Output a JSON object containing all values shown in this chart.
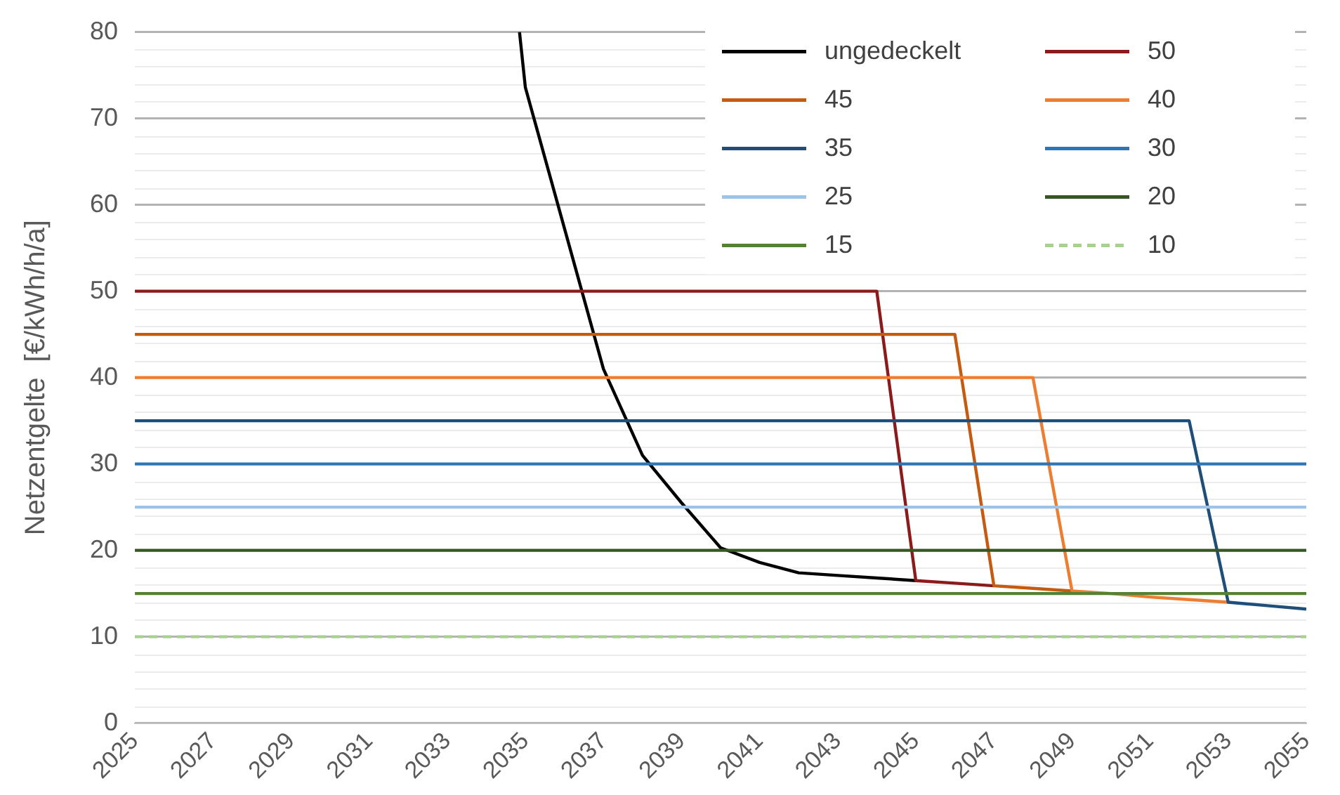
{
  "chart_data": {
    "type": "line",
    "ylabel": "Netzentgelte  [€/kWh/h/a]",
    "x": [
      2025,
      2026,
      2027,
      2028,
      2029,
      2030,
      2031,
      2032,
      2033,
      2034,
      2035,
      2036,
      2037,
      2038,
      2039,
      2040,
      2041,
      2042,
      2043,
      2044,
      2045,
      2046,
      2047,
      2048,
      2049,
      2050,
      2051,
      2052,
      2053,
      2054,
      2055
    ],
    "xlim": [
      2025,
      2055
    ],
    "xticks": [
      2025,
      2027,
      2029,
      2031,
      2033,
      2035,
      2037,
      2039,
      2041,
      2043,
      2045,
      2047,
      2049,
      2051,
      2053,
      2055
    ],
    "ylim": [
      0,
      80
    ],
    "yticks": [
      0,
      10,
      20,
      30,
      40,
      50,
      60,
      70,
      80
    ],
    "grid": "y",
    "legend": "top right",
    "marker": "none",
    "line_style": "solid",
    "series": [
      {
        "name": "ungedeckelt",
        "color": "#000000",
        "x": [
          2034.85,
          2035,
          2036,
          2037,
          2038,
          2039,
          2040,
          2041,
          2042,
          2043,
          2044,
          2045
        ],
        "values": [
          80,
          73.6,
          57.3,
          41,
          31,
          25.5,
          20.3,
          18.6,
          17.4,
          17.1,
          16.8,
          16.5
        ]
      },
      {
        "name": "50",
        "color": "#8b1a1a",
        "values": [
          50,
          50,
          50,
          50,
          50,
          50,
          50,
          50,
          50,
          50,
          50,
          50,
          50,
          50,
          50,
          50,
          50,
          50,
          50,
          50,
          16.5,
          16.2,
          15.9,
          null,
          null,
          null,
          null,
          null,
          null,
          null,
          null
        ]
      },
      {
        "name": "45",
        "color": "#c55a11",
        "values": [
          45,
          45,
          45,
          45,
          45,
          45,
          45,
          45,
          45,
          45,
          45,
          45,
          45,
          45,
          45,
          45,
          45,
          45,
          45,
          45,
          45,
          45,
          15.9,
          15.6,
          15.3,
          null,
          null,
          null,
          null,
          null,
          null
        ]
      },
      {
        "name": "40",
        "color": "#ed7d31",
        "values": [
          40,
          40,
          40,
          40,
          40,
          40,
          40,
          40,
          40,
          40,
          40,
          40,
          40,
          40,
          40,
          40,
          40,
          40,
          40,
          40,
          40,
          40,
          40,
          40,
          15.3,
          15,
          14.6,
          14.3,
          14,
          null,
          null
        ]
      },
      {
        "name": "35",
        "color": "#1f4e79",
        "values": [
          35,
          35,
          35,
          35,
          35,
          35,
          35,
          35,
          35,
          35,
          35,
          35,
          35,
          35,
          35,
          35,
          35,
          35,
          35,
          35,
          35,
          35,
          35,
          35,
          35,
          35,
          35,
          35,
          14,
          13.6,
          13.2
        ]
      },
      {
        "name": "30",
        "color": "#2e75b6",
        "values": [
          30,
          30,
          30,
          30,
          30,
          30,
          30,
          30,
          30,
          30,
          30,
          30,
          30,
          30,
          30,
          30,
          30,
          30,
          30,
          30,
          30,
          30,
          30,
          30,
          30,
          30,
          30,
          30,
          30,
          30,
          30
        ]
      },
      {
        "name": "25",
        "color": "#9dc3e6",
        "values": [
          25,
          25,
          25,
          25,
          25,
          25,
          25,
          25,
          25,
          25,
          25,
          25,
          25,
          25,
          25,
          25,
          25,
          25,
          25,
          25,
          25,
          25,
          25,
          25,
          25,
          25,
          25,
          25,
          25,
          25,
          25
        ]
      },
      {
        "name": "20",
        "color": "#375623",
        "values": [
          20,
          20,
          20,
          20,
          20,
          20,
          20,
          20,
          20,
          20,
          20,
          20,
          20,
          20,
          20,
          20,
          20,
          20,
          20,
          20,
          20,
          20,
          20,
          20,
          20,
          20,
          20,
          20,
          20,
          20,
          20
        ]
      },
      {
        "name": "15",
        "color": "#548235",
        "values": [
          15,
          15,
          15,
          15,
          15,
          15,
          15,
          15,
          15,
          15,
          15,
          15,
          15,
          15,
          15,
          15,
          15,
          15,
          15,
          15,
          15,
          15,
          15,
          15,
          15,
          15,
          15,
          15,
          15,
          15,
          15
        ]
      },
      {
        "name": "10",
        "color": "#a9d18e",
        "line_style": "dashed",
        "values": [
          10,
          10,
          10,
          10,
          10,
          10,
          10,
          10,
          10,
          10,
          10,
          10,
          10,
          10,
          10,
          10,
          10,
          10,
          10,
          10,
          10,
          10,
          10,
          10,
          10,
          10,
          10,
          10,
          10,
          10,
          10
        ]
      }
    ]
  }
}
